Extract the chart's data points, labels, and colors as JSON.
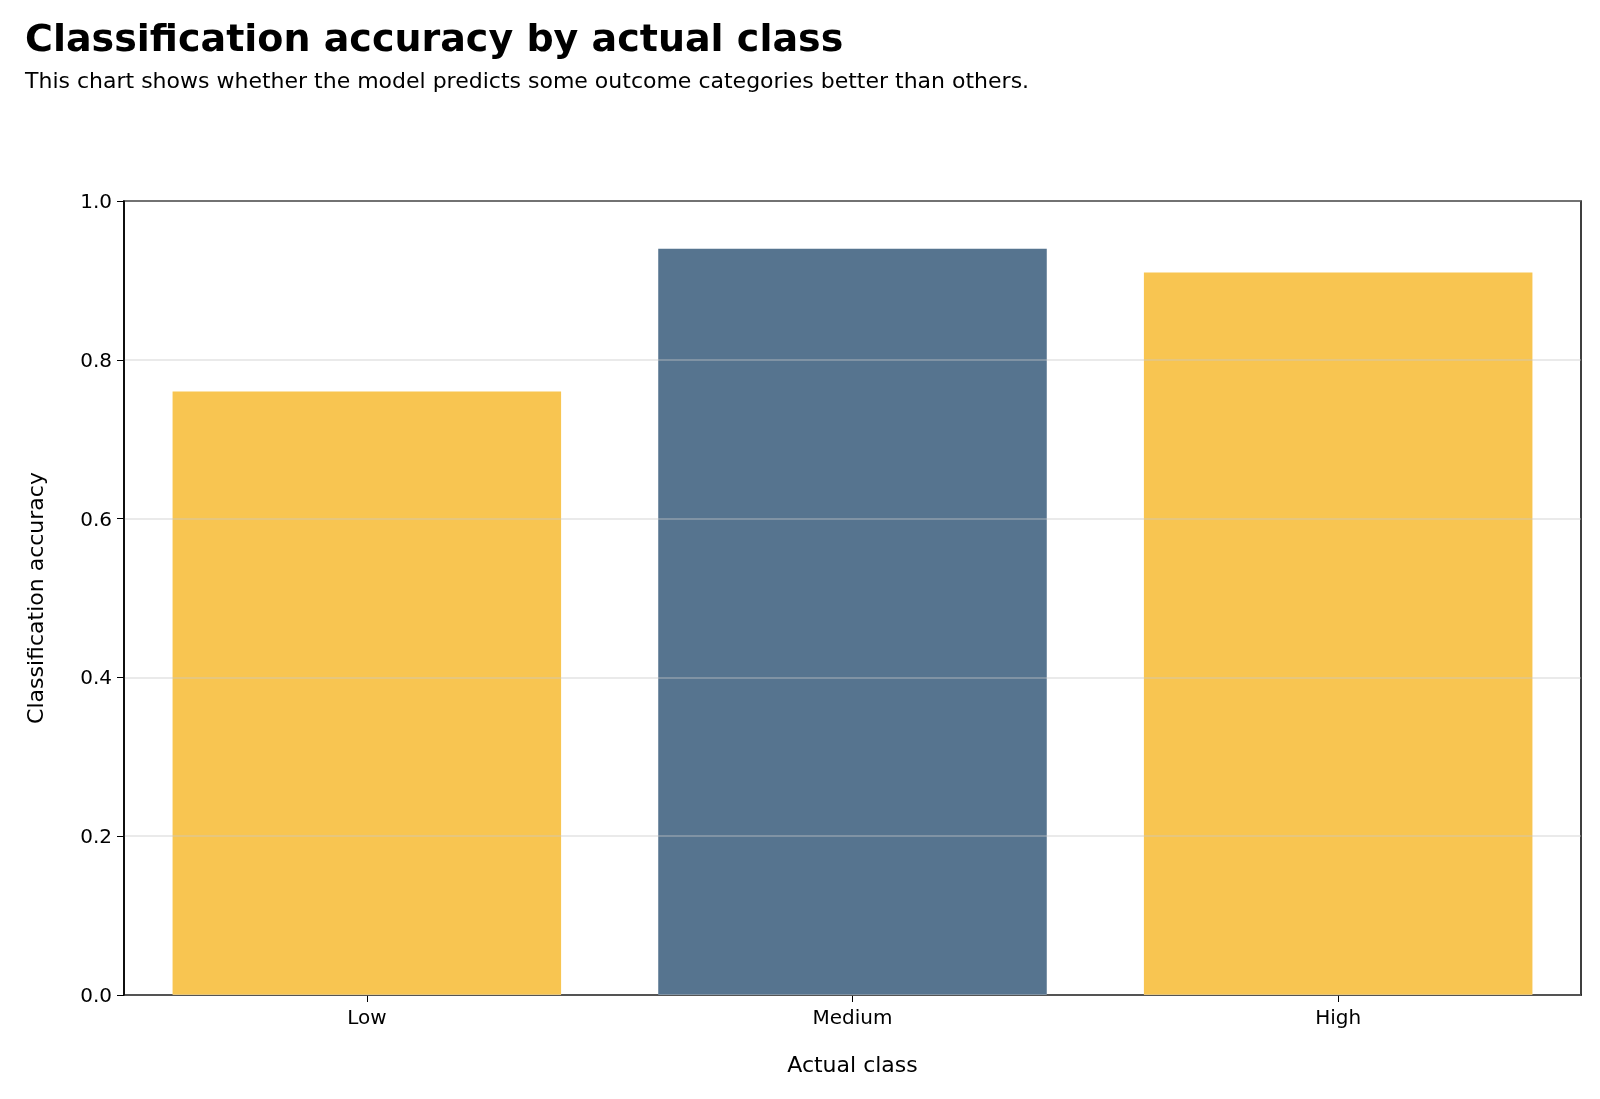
{
  "chart_data": {
    "type": "bar",
    "title": "Classification accuracy by actual class",
    "subtitle": "This chart shows whether the model predicts some outcome categories better than others.",
    "xlabel": "Actual class",
    "ylabel": "Classification accuracy",
    "categories": [
      "Low",
      "Medium",
      "High"
    ],
    "values": [
      0.76,
      0.94,
      0.91
    ],
    "colors": [
      "#f8c551",
      "#56748f",
      "#f8c551"
    ],
    "ylim": [
      0,
      1.0
    ],
    "yticks": [
      {
        "value": 0,
        "label": "0.0"
      },
      0.2,
      0.4,
      0.6,
      0.8,
      {
        "value": 1,
        "label": "1.0"
      }
    ],
    "grid": "y"
  }
}
